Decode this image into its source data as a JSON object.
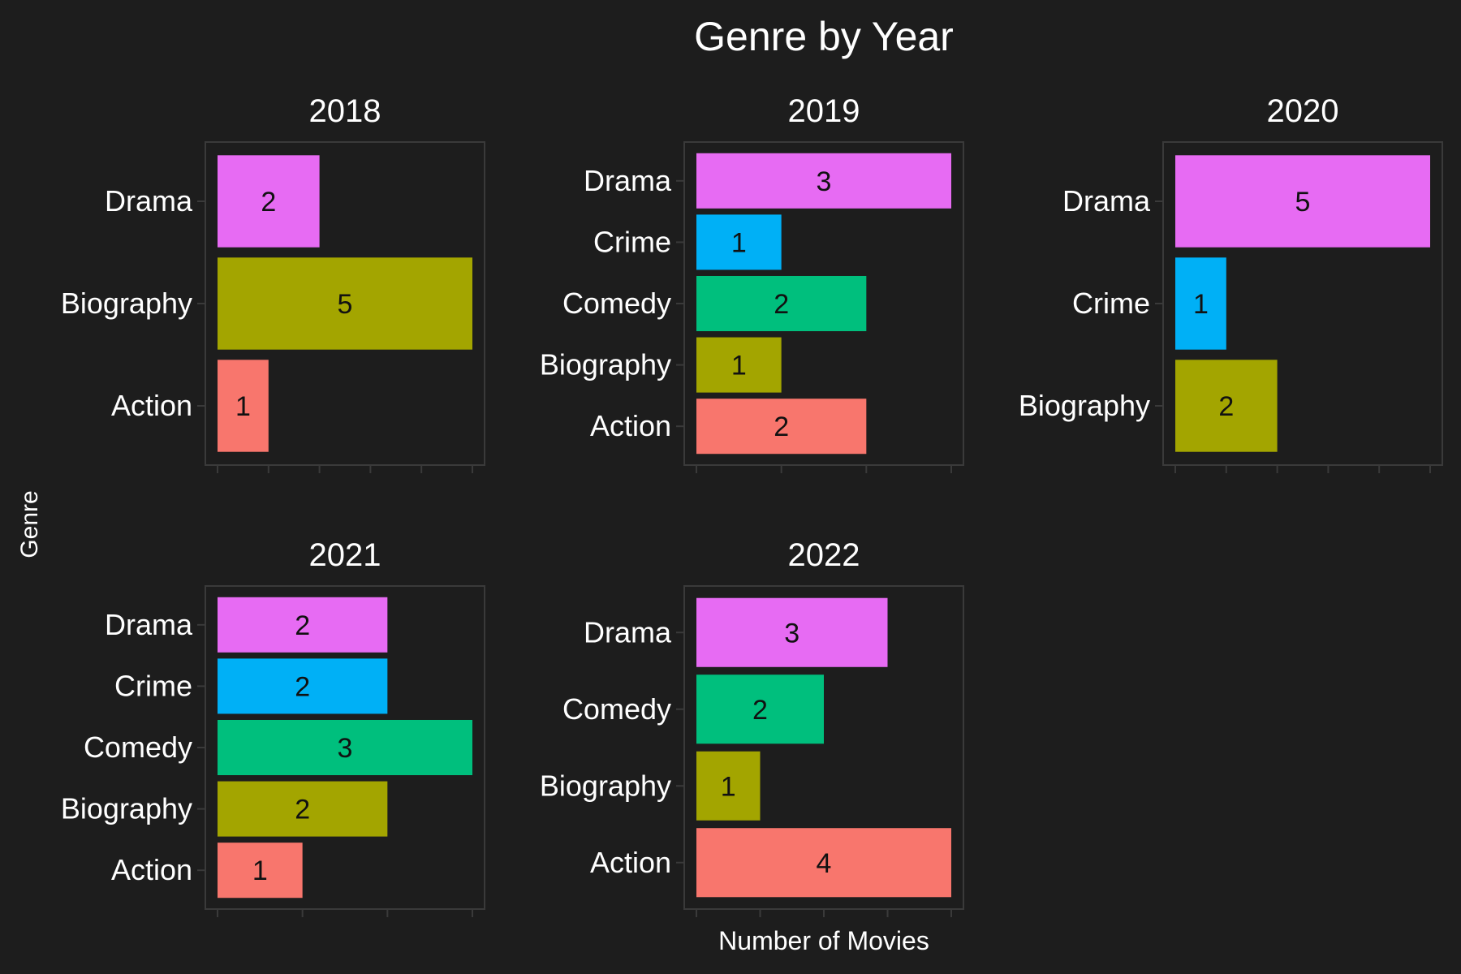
{
  "chart_data": {
    "type": "bar",
    "orientation": "horizontal",
    "faceted": true,
    "title": "Genre by Year",
    "xlabel": "Number of Movies",
    "ylabel": "Genre",
    "background": "#1d1d1d",
    "panel_border": "#3a3a3a",
    "text_color": "#ffffff",
    "label_color": "#111111",
    "genre_colors": {
      "Action": "#f8766d",
      "Biography": "#a3a500",
      "Comedy": "#00bf7d",
      "Crime": "#00b0f6",
      "Drama": "#e76bf3"
    },
    "panels": [
      {
        "year": "2018",
        "categories": [
          "Action",
          "Biography",
          "Drama"
        ],
        "values": [
          1,
          5,
          2
        ]
      },
      {
        "year": "2019",
        "categories": [
          "Action",
          "Biography",
          "Comedy",
          "Crime",
          "Drama"
        ],
        "values": [
          2,
          1,
          2,
          1,
          3
        ]
      },
      {
        "year": "2020",
        "categories": [
          "Biography",
          "Crime",
          "Drama"
        ],
        "values": [
          2,
          1,
          5
        ]
      },
      {
        "year": "2021",
        "categories": [
          "Action",
          "Biography",
          "Comedy",
          "Crime",
          "Drama"
        ],
        "values": [
          1,
          2,
          3,
          2,
          2
        ]
      },
      {
        "year": "2022",
        "categories": [
          "Action",
          "Biography",
          "Comedy",
          "Drama"
        ],
        "values": [
          4,
          1,
          2,
          3
        ]
      }
    ]
  }
}
